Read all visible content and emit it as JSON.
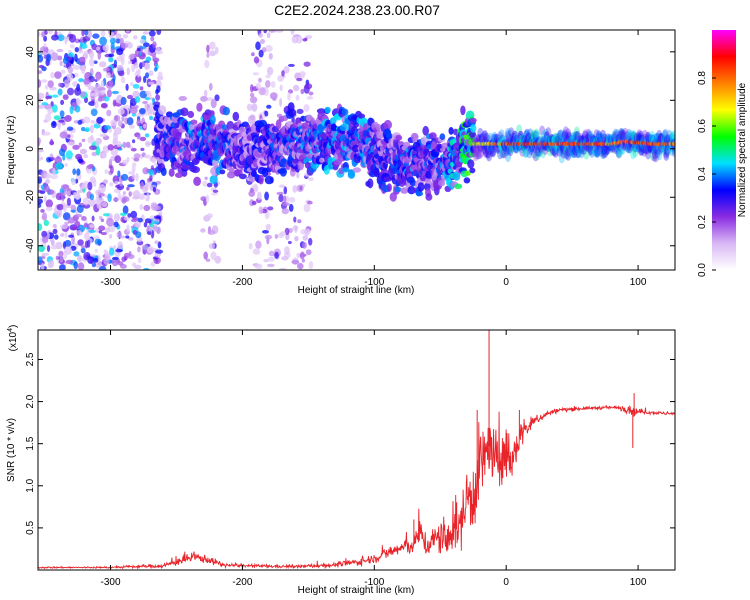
{
  "title": "C2E2.2024.238.23.00.R07",
  "chart_data": [
    {
      "type": "heatmap",
      "xlabel": "Height of straight line (km)",
      "ylabel": "Frequency (Hz)",
      "xlim": [
        -355,
        128
      ],
      "ylim": [
        -50,
        49
      ],
      "xticks": [
        -300,
        -200,
        -100,
        0,
        100
      ],
      "yticks": [
        -40,
        -20,
        0,
        20,
        40
      ],
      "colorbar": {
        "label": "Normalized spectral amplitude",
        "range": [
          0,
          1
        ],
        "ticks": [
          "0.0",
          "0.2",
          "0.4",
          "0.6",
          "0.8"
        ],
        "tick_values": [
          0.0,
          0.2,
          0.4,
          0.6,
          0.8
        ],
        "colormap": [
          "#ffffff",
          "#d9b8f5",
          "#8a2be2",
          "#0000ff",
          "#00e0ff",
          "#00ff00",
          "#ffff00",
          "#ff8000",
          "#ff0000",
          "#ff00ff"
        ]
      },
      "ridge": {
        "x": [
          -265,
          -250,
          -230,
          -200,
          -170,
          -150,
          -130,
          -110,
          -95,
          -80,
          -70,
          -60,
          -50,
          -40,
          -30,
          -20,
          0,
          30,
          60,
          80,
          90,
          110,
          128
        ],
        "freq": [
          6,
          3,
          4,
          0,
          1,
          4,
          4,
          2,
          -2,
          -5,
          -7,
          -6,
          -6,
          -3,
          2,
          2,
          2,
          2,
          2,
          2,
          3,
          2,
          2
        ],
        "amplitude": [
          0.35,
          0.4,
          0.45,
          0.35,
          0.4,
          0.45,
          0.45,
          0.45,
          0.4,
          0.4,
          0.45,
          0.4,
          0.4,
          0.5,
          0.6,
          0.7,
          0.9,
          0.92,
          0.9,
          0.85,
          0.9,
          0.9,
          0.85
        ]
      },
      "noise_regions": [
        {
          "x_from": -355,
          "x_to": -262,
          "density": 0.9
        },
        {
          "x_from": -230,
          "x_to": -218,
          "density": 0.35
        },
        {
          "x_from": -195,
          "x_to": -148,
          "density": 0.45
        }
      ]
    },
    {
      "type": "line",
      "xlabel": "Height of straight line (km)",
      "ylabel": "SNR (10 * v/v)",
      "multiplier": "(x10",
      "multiplier_exp": "4",
      "multiplier_close": ")",
      "xlim": [
        -355,
        128
      ],
      "ylim": [
        0,
        2.85
      ],
      "xticks": [
        -300,
        -200,
        -100,
        0,
        100
      ],
      "yticks": [
        0.5,
        1.0,
        1.5,
        2.0,
        2.5
      ],
      "ytick_labels": [
        "0.5",
        "1.0",
        "1.5",
        "2.0",
        "2.5"
      ],
      "color": "#e8242a",
      "series": [
        {
          "x": [
            -355,
            -300,
            -260,
            -245,
            -235,
            -225,
            -215,
            -200,
            -160,
            -130,
            -110,
            -100,
            -90,
            -80,
            -70,
            -65,
            -60,
            -55,
            -50,
            -45,
            -40,
            -35,
            -30,
            -25,
            -20,
            -15,
            -12,
            -10,
            -5,
            0,
            5,
            10,
            20,
            30,
            40,
            60,
            80,
            90,
            95,
            98,
            100,
            110,
            120,
            128
          ],
          "y": [
            0.03,
            0.03,
            0.05,
            0.12,
            0.15,
            0.12,
            0.06,
            0.05,
            0.04,
            0.06,
            0.1,
            0.14,
            0.2,
            0.26,
            0.3,
            0.45,
            0.28,
            0.35,
            0.4,
            0.3,
            0.55,
            0.5,
            0.85,
            0.9,
            1.2,
            1.4,
            1.5,
            1.25,
            1.3,
            1.4,
            1.25,
            1.6,
            1.75,
            1.85,
            1.9,
            1.92,
            1.93,
            1.92,
            1.9,
            1.88,
            1.88,
            1.87,
            1.86,
            1.85
          ],
          "noise": [
            0.01,
            0.01,
            0.03,
            0.06,
            0.06,
            0.05,
            0.03,
            0.02,
            0.02,
            0.03,
            0.05,
            0.06,
            0.08,
            0.1,
            0.12,
            0.2,
            0.15,
            0.2,
            0.25,
            0.25,
            0.35,
            0.3,
            0.45,
            0.5,
            0.55,
            0.5,
            0.45,
            0.45,
            0.4,
            0.35,
            0.3,
            0.2,
            0.08,
            0.04,
            0.03,
            0.02,
            0.02,
            0.05,
            0.08,
            0.06,
            0.03,
            0.02,
            0.02,
            0.02
          ]
        }
      ],
      "spikes": [
        {
          "x": -13,
          "y": 2.85
        },
        {
          "x": -22,
          "y": 1.9
        },
        {
          "x": 10,
          "y": 1.9
        },
        {
          "x": -70,
          "y": 0.6
        },
        {
          "x": 97,
          "y": 2.1
        },
        {
          "x": 96,
          "y": 1.45
        }
      ]
    }
  ]
}
